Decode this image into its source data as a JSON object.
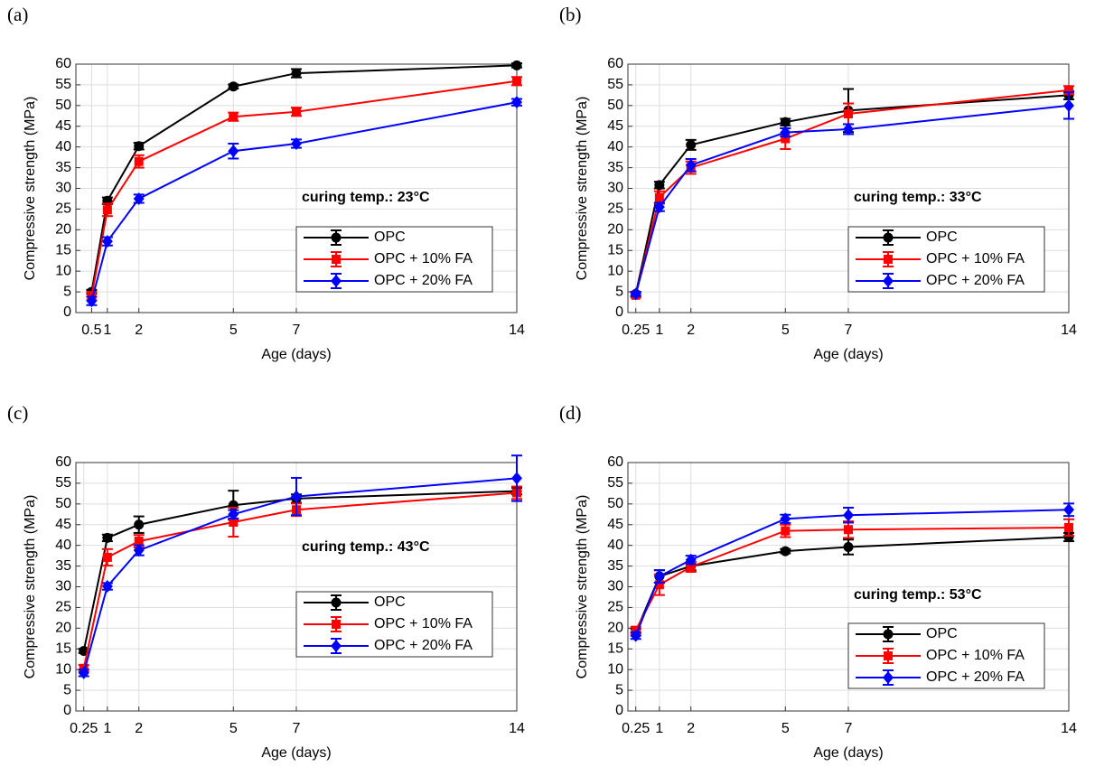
{
  "chart_data": [
    {
      "type": "line",
      "panel_label": "(a)",
      "annotation": "curing temp.: 23°C",
      "x_label": "Age (days)",
      "y_label": "Compressive strength (MPa)",
      "x": [
        0.5,
        1,
        2,
        5,
        7,
        14
      ],
      "xlim": [
        0,
        14
      ],
      "xticks": [
        0.5,
        1,
        2,
        5,
        7,
        14
      ],
      "ylim": [
        0,
        60
      ],
      "yticks": [
        0,
        5,
        10,
        15,
        20,
        25,
        30,
        35,
        40,
        45,
        50,
        55,
        60
      ],
      "grid": true,
      "legend": "lower right",
      "series": [
        {
          "name": "OPC",
          "color": "#000000",
          "marker": "circle",
          "values": [
            5,
            27,
            40.2,
            54.6,
            57.8,
            59.7
          ],
          "errors": [
            0.5,
            0.8,
            0.8,
            0.5,
            1,
            0.5
          ]
        },
        {
          "name": "OPC + 10% FA",
          "color": "#ff0000",
          "marker": "square",
          "values": [
            4,
            24.8,
            36.5,
            47.3,
            48.5,
            55.9
          ],
          "errors": [
            1,
            1.5,
            1.5,
            1,
            1,
            1
          ]
        },
        {
          "name": "OPC + 20% FA",
          "color": "#0000ff",
          "marker": "diamond",
          "values": [
            2.8,
            17.2,
            27.5,
            39,
            40.8,
            50.8
          ],
          "errors": [
            1,
            1,
            1,
            1.8,
            1,
            0.8
          ]
        }
      ]
    },
    {
      "type": "line",
      "panel_label": "(b)",
      "annotation": "curing temp.: 33°C",
      "x_label": "Age (days)",
      "y_label": "Compressive strength (MPa)",
      "x": [
        0.25,
        1,
        2,
        5,
        7,
        14
      ],
      "xlim": [
        0,
        14
      ],
      "xticks": [
        0.25,
        1,
        2,
        5,
        7,
        14
      ],
      "ylim": [
        0,
        60
      ],
      "yticks": [
        0,
        5,
        10,
        15,
        20,
        25,
        30,
        35,
        40,
        45,
        50,
        55,
        60
      ],
      "grid": true,
      "legend": "lower right",
      "series": [
        {
          "name": "OPC",
          "color": "#000000",
          "marker": "circle",
          "values": [
            4.5,
            30.8,
            40.5,
            46,
            48.8,
            52.5
          ],
          "errors": [
            0.5,
            0.8,
            1.2,
            0.8,
            5.2,
            1
          ]
        },
        {
          "name": "OPC + 10% FA",
          "color": "#ff0000",
          "marker": "square",
          "values": [
            4.2,
            27.8,
            35,
            42,
            48,
            53.7
          ],
          "errors": [
            0.5,
            1.5,
            1.5,
            2.5,
            2.5,
            1
          ]
        },
        {
          "name": "OPC + 20% FA",
          "color": "#0000ff",
          "marker": "diamond",
          "values": [
            4.5,
            25.5,
            35.6,
            43.5,
            44.3,
            50
          ],
          "errors": [
            0.5,
            1,
            1.5,
            1,
            1.2,
            3.2
          ]
        }
      ]
    },
    {
      "type": "line",
      "panel_label": "(c)",
      "annotation": "curing temp.: 43°C",
      "x_label": "Age (days)",
      "y_label": "Compressive strength (MPa)",
      "x": [
        0.25,
        1,
        2,
        5,
        7,
        14
      ],
      "xlim": [
        0,
        14
      ],
      "xticks": [
        0.25,
        1,
        2,
        5,
        7,
        14
      ],
      "ylim": [
        0,
        60
      ],
      "yticks": [
        0,
        5,
        10,
        15,
        20,
        25,
        30,
        35,
        40,
        45,
        50,
        55,
        60
      ],
      "grid": true,
      "legend": "lower right",
      "series": [
        {
          "name": "OPC",
          "color": "#000000",
          "marker": "circle",
          "values": [
            14.5,
            41.8,
            45,
            49.7,
            51.3,
            53.1
          ],
          "errors": [
            0.5,
            0.8,
            2,
            3.5,
            1,
            0.8
          ]
        },
        {
          "name": "OPC + 10% FA",
          "color": "#ff0000",
          "marker": "square",
          "values": [
            10.3,
            37.1,
            41,
            45.6,
            48.6,
            52.7
          ],
          "errors": [
            0.8,
            2,
            1.5,
            3.5,
            1.5,
            1.5
          ]
        },
        {
          "name": "OPC + 20% FA",
          "color": "#0000ff",
          "marker": "diamond",
          "values": [
            9.2,
            30.1,
            38.8,
            47.5,
            51.8,
            56.2
          ],
          "errors": [
            0.8,
            0.8,
            1.2,
            1,
            4.5,
            5.5
          ]
        }
      ]
    },
    {
      "type": "line",
      "panel_label": "(d)",
      "annotation": "curing temp.: 53°C",
      "x_label": "Age (days)",
      "y_label": "Compressive strength (MPa)",
      "x": [
        0.25,
        1,
        2,
        5,
        7,
        14
      ],
      "xlim": [
        0,
        14
      ],
      "xticks": [
        0.25,
        1,
        2,
        5,
        7,
        14
      ],
      "ylim": [
        0,
        60
      ],
      "yticks": [
        0,
        5,
        10,
        15,
        20,
        25,
        30,
        35,
        40,
        45,
        50,
        55,
        60
      ],
      "grid": true,
      "legend": "lower right",
      "series": [
        {
          "name": "OPC",
          "color": "#000000",
          "marker": "circle",
          "values": [
            19,
            32.5,
            35,
            38.6,
            39.6,
            42
          ],
          "errors": [
            0.8,
            1.5,
            1,
            0.5,
            1.8,
            1
          ]
        },
        {
          "name": "OPC + 10% FA",
          "color": "#ff0000",
          "marker": "square",
          "values": [
            19.5,
            30.5,
            34.8,
            43.5,
            43.8,
            44.3
          ],
          "errors": [
            0.8,
            2.5,
            1.2,
            1.5,
            2,
            2
          ]
        },
        {
          "name": "OPC + 20% FA",
          "color": "#0000ff",
          "marker": "diamond",
          "values": [
            18.2,
            32.5,
            36.5,
            46.4,
            47.3,
            48.6
          ],
          "errors": [
            0.8,
            1.5,
            1,
            1,
            1.8,
            1.5
          ]
        }
      ]
    }
  ]
}
